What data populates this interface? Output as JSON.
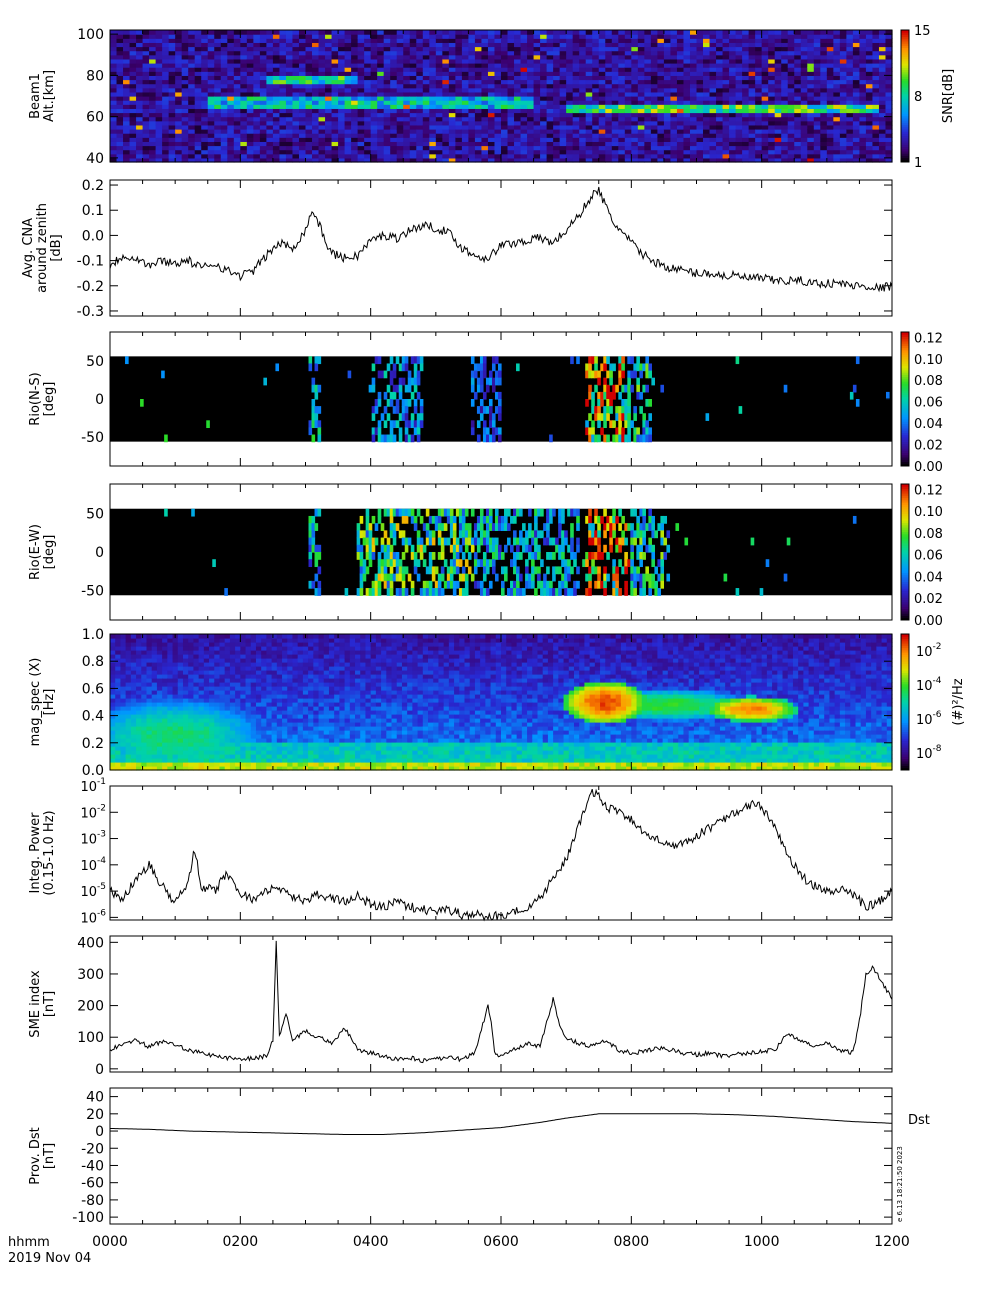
{
  "figure": {
    "time_label": "hhmm",
    "date_label": "2019 Nov 04",
    "stamp": "e 6.13 18:21:50 2023"
  },
  "chart_data": [
    {
      "id": "beam",
      "type": "heatmap",
      "ylabel_lines": [
        "Beam1",
        "Alt.[km]"
      ],
      "ylim": [
        38,
        102
      ],
      "yticks": [
        40,
        60,
        80,
        100
      ],
      "x_range": [
        0,
        1200
      ],
      "colorbar": {
        "label": "SNR[dB]",
        "range": [
          1,
          15
        ],
        "ticks": [
          "1",
          "8",
          "15"
        ],
        "scale": "linear"
      },
      "bands": [
        {
          "alt": 78,
          "t_from": 240,
          "t_to": 380,
          "value": 9
        },
        {
          "alt": 67,
          "t_from": 150,
          "t_to": 650,
          "value": 8
        },
        {
          "alt": 64,
          "t_from": 700,
          "t_to": 1180,
          "value": 10
        }
      ],
      "background_value": 3
    },
    {
      "id": "cna",
      "type": "line",
      "ylabel_lines": [
        "Avg. CNA",
        "around zenith",
        "[dB]"
      ],
      "ylim": [
        -0.32,
        0.22
      ],
      "yticks": [
        "0.2",
        "0.1",
        "0.0",
        "-0.1",
        "-0.2",
        "-0.3"
      ],
      "ytick_values": [
        0.2,
        0.1,
        0.0,
        -0.1,
        -0.2,
        -0.3
      ],
      "x_range": [
        0,
        1200
      ],
      "x": [
        0,
        20,
        40,
        60,
        80,
        100,
        120,
        140,
        160,
        180,
        200,
        220,
        240,
        260,
        280,
        300,
        310,
        320,
        330,
        340,
        360,
        380,
        400,
        420,
        440,
        460,
        480,
        500,
        520,
        540,
        560,
        580,
        600,
        620,
        640,
        660,
        680,
        700,
        720,
        740,
        750,
        760,
        770,
        780,
        800,
        820,
        840,
        860,
        880,
        900,
        920,
        940,
        960,
        980,
        1000,
        1020,
        1040,
        1060,
        1080,
        1100,
        1120,
        1140,
        1160,
        1180,
        1200
      ],
      "y": [
        -0.12,
        -0.08,
        -0.09,
        -0.12,
        -0.1,
        -0.11,
        -0.1,
        -0.13,
        -0.11,
        -0.14,
        -0.16,
        -0.14,
        -0.08,
        -0.03,
        -0.05,
        0.02,
        0.1,
        0.05,
        -0.02,
        -0.07,
        -0.09,
        -0.08,
        -0.02,
        0.0,
        -0.01,
        0.02,
        0.04,
        0.03,
        0.01,
        -0.05,
        -0.08,
        -0.09,
        -0.04,
        -0.03,
        -0.02,
        -0.01,
        -0.03,
        0.02,
        0.08,
        0.16,
        0.18,
        0.12,
        0.06,
        0.03,
        -0.03,
        -0.08,
        -0.11,
        -0.13,
        -0.14,
        -0.15,
        -0.15,
        -0.16,
        -0.16,
        -0.17,
        -0.17,
        -0.18,
        -0.18,
        -0.18,
        -0.19,
        -0.19,
        -0.19,
        -0.2,
        -0.2,
        -0.21,
        -0.2
      ]
    },
    {
      "id": "rio_ns",
      "type": "heatmap",
      "ylabel_lines": [
        "Rio(N-S)",
        "[deg]"
      ],
      "ylim": [
        -88,
        88
      ],
      "yticks": [
        50,
        0,
        -50
      ],
      "data_band": [
        -56,
        56
      ],
      "x_range": [
        0,
        1200
      ],
      "colorbar": {
        "range": [
          0,
          0.125
        ],
        "ticks": [
          "0.12",
          "0.10",
          "0.08",
          "0.06",
          "0.04",
          "0.02",
          "0.00"
        ],
        "tick_values": [
          0.12,
          0.1,
          0.08,
          0.06,
          0.04,
          0.02,
          0.0
        ],
        "scale": "linear"
      },
      "events": [
        {
          "t_from": 305,
          "t_to": 322,
          "value": 0.06
        },
        {
          "t_from": 400,
          "t_to": 480,
          "value": 0.05
        },
        {
          "t_from": 555,
          "t_to": 600,
          "value": 0.04
        },
        {
          "t_from": 730,
          "t_to": 790,
          "value": 0.12
        },
        {
          "t_from": 790,
          "t_to": 830,
          "value": 0.07
        }
      ]
    },
    {
      "id": "rio_ew",
      "type": "heatmap",
      "ylabel_lines": [
        "Rio(E-W)",
        "[deg]"
      ],
      "ylim": [
        -88,
        88
      ],
      "yticks": [
        50,
        0,
        -50
      ],
      "data_band": [
        -56,
        56
      ],
      "x_range": [
        0,
        1200
      ],
      "colorbar": {
        "range": [
          0,
          0.125
        ],
        "ticks": [
          "0.12",
          "0.10",
          "0.08",
          "0.06",
          "0.04",
          "0.02",
          "0.00"
        ],
        "tick_values": [
          0.12,
          0.1,
          0.08,
          0.06,
          0.04,
          0.02,
          0.0
        ],
        "scale": "linear"
      },
      "events": [
        {
          "t_from": 305,
          "t_to": 325,
          "value": 0.06
        },
        {
          "t_from": 380,
          "t_to": 560,
          "value": 0.08
        },
        {
          "t_from": 560,
          "t_to": 720,
          "value": 0.06
        },
        {
          "t_from": 730,
          "t_to": 800,
          "value": 0.12
        },
        {
          "t_from": 800,
          "t_to": 860,
          "value": 0.07
        }
      ]
    },
    {
      "id": "magspec",
      "type": "heatmap",
      "ylabel_lines": [
        "mag_spec (X)",
        "[Hz]"
      ],
      "ylim": [
        0,
        1.0
      ],
      "yticks": [
        "1.0",
        "0.8",
        "0.6",
        "0.4",
        "0.2",
        "0.0"
      ],
      "ytick_values": [
        1.0,
        0.8,
        0.6,
        0.4,
        0.2,
        0.0
      ],
      "x_range": [
        0,
        1200
      ],
      "colorbar": {
        "label": "(#)²/Hz",
        "scale": "log",
        "log_range": [
          -9,
          -1
        ],
        "ticks": [
          {
            "base": "10",
            "exp": "-2",
            "value": -2
          },
          {
            "base": "10",
            "exp": "-4",
            "value": -4
          },
          {
            "base": "10",
            "exp": "-6",
            "value": -6
          },
          {
            "base": "10",
            "exp": "-8",
            "value": -8
          }
        ]
      },
      "features": [
        {
          "t": 760,
          "f": 0.5,
          "t_width": 40,
          "f_width": 0.1,
          "log_value": -1.5
        },
        {
          "t": 860,
          "f": 0.48,
          "t_width": 80,
          "f_width": 0.08,
          "log_value": -4
        },
        {
          "t": 985,
          "f": 0.45,
          "t_width": 45,
          "f_width": 0.06,
          "log_value": -2
        },
        {
          "t": 100,
          "f": 0.25,
          "t_width": 100,
          "f_width": 0.2,
          "log_value": -4.5
        }
      ]
    },
    {
      "id": "power",
      "type": "line",
      "ylabel_lines": [
        "Integ. Power",
        "(0.15-1.0 Hz)"
      ],
      "yscale": "log",
      "ylim_log": [
        -6.1,
        -1
      ],
      "yticks": [
        {
          "base": "10",
          "exp": "-1",
          "value": -1
        },
        {
          "base": "10",
          "exp": "-2",
          "value": -2
        },
        {
          "base": "10",
          "exp": "-3",
          "value": -3
        },
        {
          "base": "10",
          "exp": "-4",
          "value": -4
        },
        {
          "base": "10",
          "exp": "-5",
          "value": -5
        },
        {
          "base": "10",
          "exp": "-6",
          "value": -6
        }
      ],
      "x_range": [
        0,
        1200
      ],
      "x": [
        0,
        20,
        40,
        60,
        80,
        100,
        120,
        130,
        140,
        160,
        180,
        200,
        220,
        240,
        260,
        280,
        300,
        320,
        340,
        360,
        380,
        400,
        420,
        440,
        460,
        480,
        500,
        520,
        540,
        560,
        580,
        600,
        620,
        640,
        660,
        680,
        700,
        720,
        740,
        750,
        760,
        780,
        800,
        820,
        840,
        860,
        880,
        900,
        920,
        940,
        960,
        980,
        1000,
        1020,
        1040,
        1060,
        1080,
        1100,
        1120,
        1140,
        1160,
        1180,
        1200
      ],
      "y": [
        -5.0,
        -5.3,
        -4.5,
        -4.0,
        -4.8,
        -5.5,
        -4.6,
        -3.4,
        -4.8,
        -5.0,
        -4.3,
        -5.1,
        -5.3,
        -5.0,
        -4.9,
        -5.2,
        -5.4,
        -5.1,
        -5.3,
        -5.4,
        -5.2,
        -5.5,
        -5.6,
        -5.4,
        -5.6,
        -5.7,
        -5.8,
        -5.7,
        -5.9,
        -5.8,
        -6.0,
        -5.9,
        -5.8,
        -5.6,
        -5.3,
        -4.5,
        -3.8,
        -2.5,
        -1.2,
        -1.3,
        -1.8,
        -2.0,
        -2.3,
        -2.8,
        -3.0,
        -3.3,
        -3.2,
        -2.9,
        -2.6,
        -2.3,
        -2.0,
        -1.7,
        -1.8,
        -2.6,
        -3.6,
        -4.4,
        -4.8,
        -5.0,
        -4.9,
        -5.1,
        -5.6,
        -5.4,
        -5.0
      ]
    },
    {
      "id": "sme",
      "type": "line",
      "ylabel_lines": [
        "SME index",
        "[nT]"
      ],
      "ylim": [
        -10,
        420
      ],
      "yticks": [
        "400",
        "300",
        "200",
        "100",
        "0"
      ],
      "ytick_values": [
        400,
        300,
        200,
        100,
        0
      ],
      "x_range": [
        0,
        1200
      ],
      "x": [
        0,
        20,
        40,
        60,
        80,
        100,
        120,
        140,
        160,
        180,
        200,
        220,
        240,
        250,
        255,
        260,
        270,
        280,
        300,
        320,
        340,
        360,
        380,
        400,
        420,
        440,
        460,
        480,
        500,
        520,
        540,
        560,
        580,
        585,
        590,
        600,
        620,
        640,
        660,
        680,
        690,
        700,
        720,
        740,
        760,
        780,
        800,
        820,
        840,
        860,
        880,
        900,
        920,
        940,
        960,
        980,
        1000,
        1020,
        1040,
        1060,
        1080,
        1100,
        1120,
        1140,
        1150,
        1160,
        1170,
        1180,
        1200
      ],
      "y": [
        60,
        80,
        90,
        70,
        85,
        75,
        60,
        50,
        40,
        35,
        30,
        35,
        40,
        90,
        400,
        100,
        180,
        90,
        120,
        100,
        80,
        130,
        60,
        50,
        40,
        30,
        35,
        25,
        30,
        35,
        30,
        50,
        200,
        150,
        50,
        40,
        60,
        80,
        70,
        220,
        140,
        100,
        80,
        70,
        90,
        60,
        50,
        55,
        65,
        60,
        50,
        45,
        50,
        40,
        45,
        50,
        55,
        60,
        110,
        90,
        70,
        80,
        60,
        50,
        150,
        300,
        320,
        290,
        220
      ]
    },
    {
      "id": "dst",
      "type": "line",
      "ylabel_lines": [
        "Prov. Dst",
        "[nT]"
      ],
      "ylim": [
        -108,
        50
      ],
      "yticks": [
        "40",
        "20",
        "0",
        "-20",
        "-40",
        "-60",
        "-80",
        "-100"
      ],
      "ytick_values": [
        40,
        20,
        0,
        -20,
        -40,
        -60,
        -80,
        -100
      ],
      "series_name": "Dst",
      "x_range": [
        0,
        1200
      ],
      "x": [
        0,
        60,
        120,
        180,
        240,
        300,
        360,
        420,
        480,
        540,
        600,
        660,
        700,
        750,
        780,
        840,
        900,
        960,
        1020,
        1080,
        1140,
        1200
      ],
      "y": [
        3,
        2,
        0,
        -1,
        -2,
        -3,
        -4,
        -4,
        -2,
        1,
        4,
        10,
        15,
        20,
        20,
        20,
        20,
        19,
        17,
        14,
        11,
        9
      ]
    }
  ],
  "x_axis": {
    "ticks": [
      "0000",
      "0200",
      "0400",
      "0600",
      "0800",
      "1000",
      "1200"
    ],
    "tick_values": [
      0,
      200,
      400,
      600,
      800,
      1000,
      1200
    ],
    "range": [
      0,
      1200
    ]
  }
}
